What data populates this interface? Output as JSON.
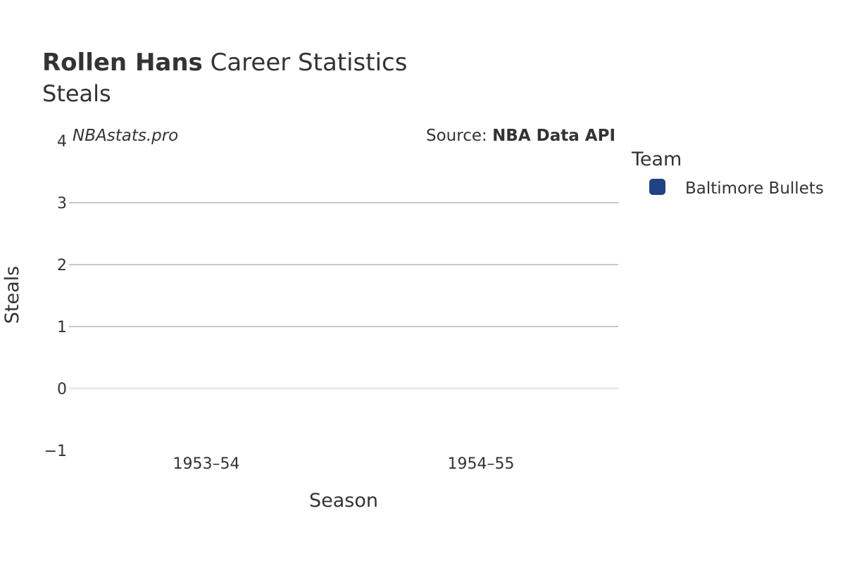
{
  "title": {
    "player": "Rollen Hans",
    "rest": " Career Statistics",
    "subtitle": "Steals"
  },
  "watermark": "NBAstats.pro",
  "source": {
    "prefix": "Source: ",
    "name": "NBA Data API"
  },
  "legend": {
    "title": "Team",
    "items": [
      {
        "label": "Baltimore Bullets",
        "color": "#1f4287"
      }
    ]
  },
  "chart_data": {
    "type": "bar",
    "categories": [
      "1953–54",
      "1954–55"
    ],
    "series": [
      {
        "name": "Baltimore Bullets",
        "values": [
          null,
          null
        ],
        "color": "#1f4287"
      }
    ],
    "xlabel": "Season",
    "ylabel": "Steals",
    "ylim": [
      -1,
      4
    ],
    "yticks": [
      {
        "value": 4,
        "label": "4"
      },
      {
        "value": 3,
        "label": "3"
      },
      {
        "value": 2,
        "label": "2"
      },
      {
        "value": 1,
        "label": "1"
      },
      {
        "value": 0,
        "label": "0"
      },
      {
        "value": -1,
        "label": "−1"
      }
    ],
    "grid": true,
    "legend_position": "right"
  }
}
